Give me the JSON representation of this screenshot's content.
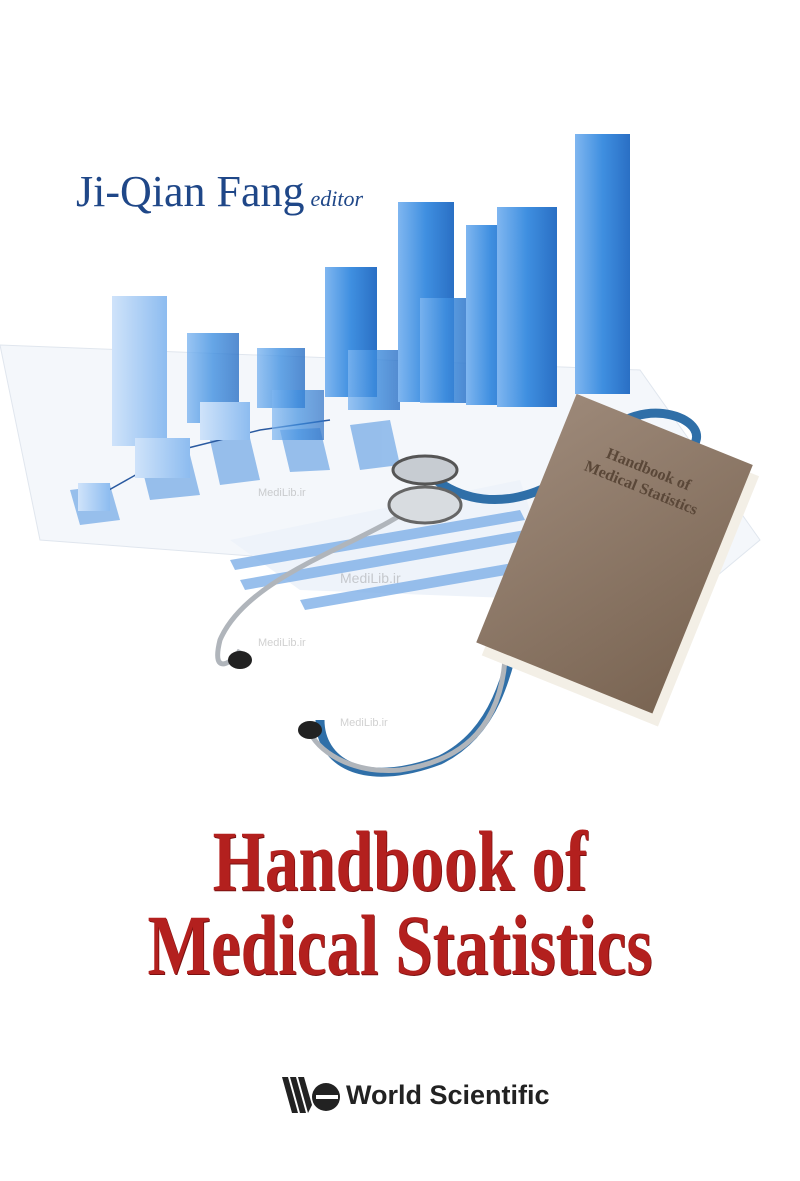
{
  "author": {
    "name": "Ji-Qian Fang",
    "role": "editor"
  },
  "title": {
    "line1": "Handbook of",
    "line2": "Medical Statistics"
  },
  "book_prop_label": {
    "line1": "Handbook of",
    "line2": "Medical Statistics"
  },
  "publisher": {
    "name": "World Scientific",
    "logo": "ws-logo-icon"
  },
  "watermark": "MediLib.ir",
  "colors": {
    "author": "#1f4788",
    "title": "#b3201e",
    "bars": "#3f8fe0",
    "book": "#8a7563"
  }
}
